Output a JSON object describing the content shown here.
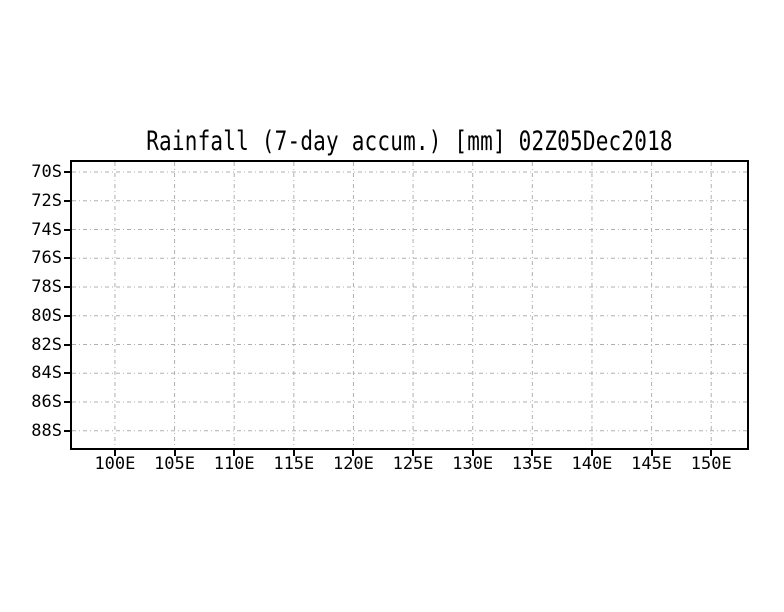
{
  "chart_data": {
    "type": "heatmap",
    "title": "Rainfall (7-day accum.) [mm] 02Z05Dec2018",
    "xlabel": "",
    "ylabel": "",
    "x_ticks": {
      "values": [
        100,
        105,
        110,
        115,
        120,
        125,
        130,
        135,
        140,
        145,
        150
      ],
      "labels": [
        "100E",
        "105E",
        "110E",
        "115E",
        "120E",
        "125E",
        "130E",
        "135E",
        "140E",
        "145E",
        "150E"
      ]
    },
    "y_ticks": {
      "values": [
        70,
        72,
        74,
        76,
        78,
        80,
        82,
        84,
        86,
        88
      ],
      "labels": [
        "70S",
        "72S",
        "74S",
        "76S",
        "78S",
        "80S",
        "82S",
        "84S",
        "86S",
        "88S"
      ]
    },
    "xlim": [
      96.4,
      153.0
    ],
    "ylim": [
      69.3,
      89.2
    ],
    "grid": true,
    "legend": false,
    "values": [],
    "empty_plot": true
  },
  "colors": {
    "background": "#ffffff",
    "grid": "#b0b0b0",
    "frame": "#000000",
    "text": "#000000"
  }
}
